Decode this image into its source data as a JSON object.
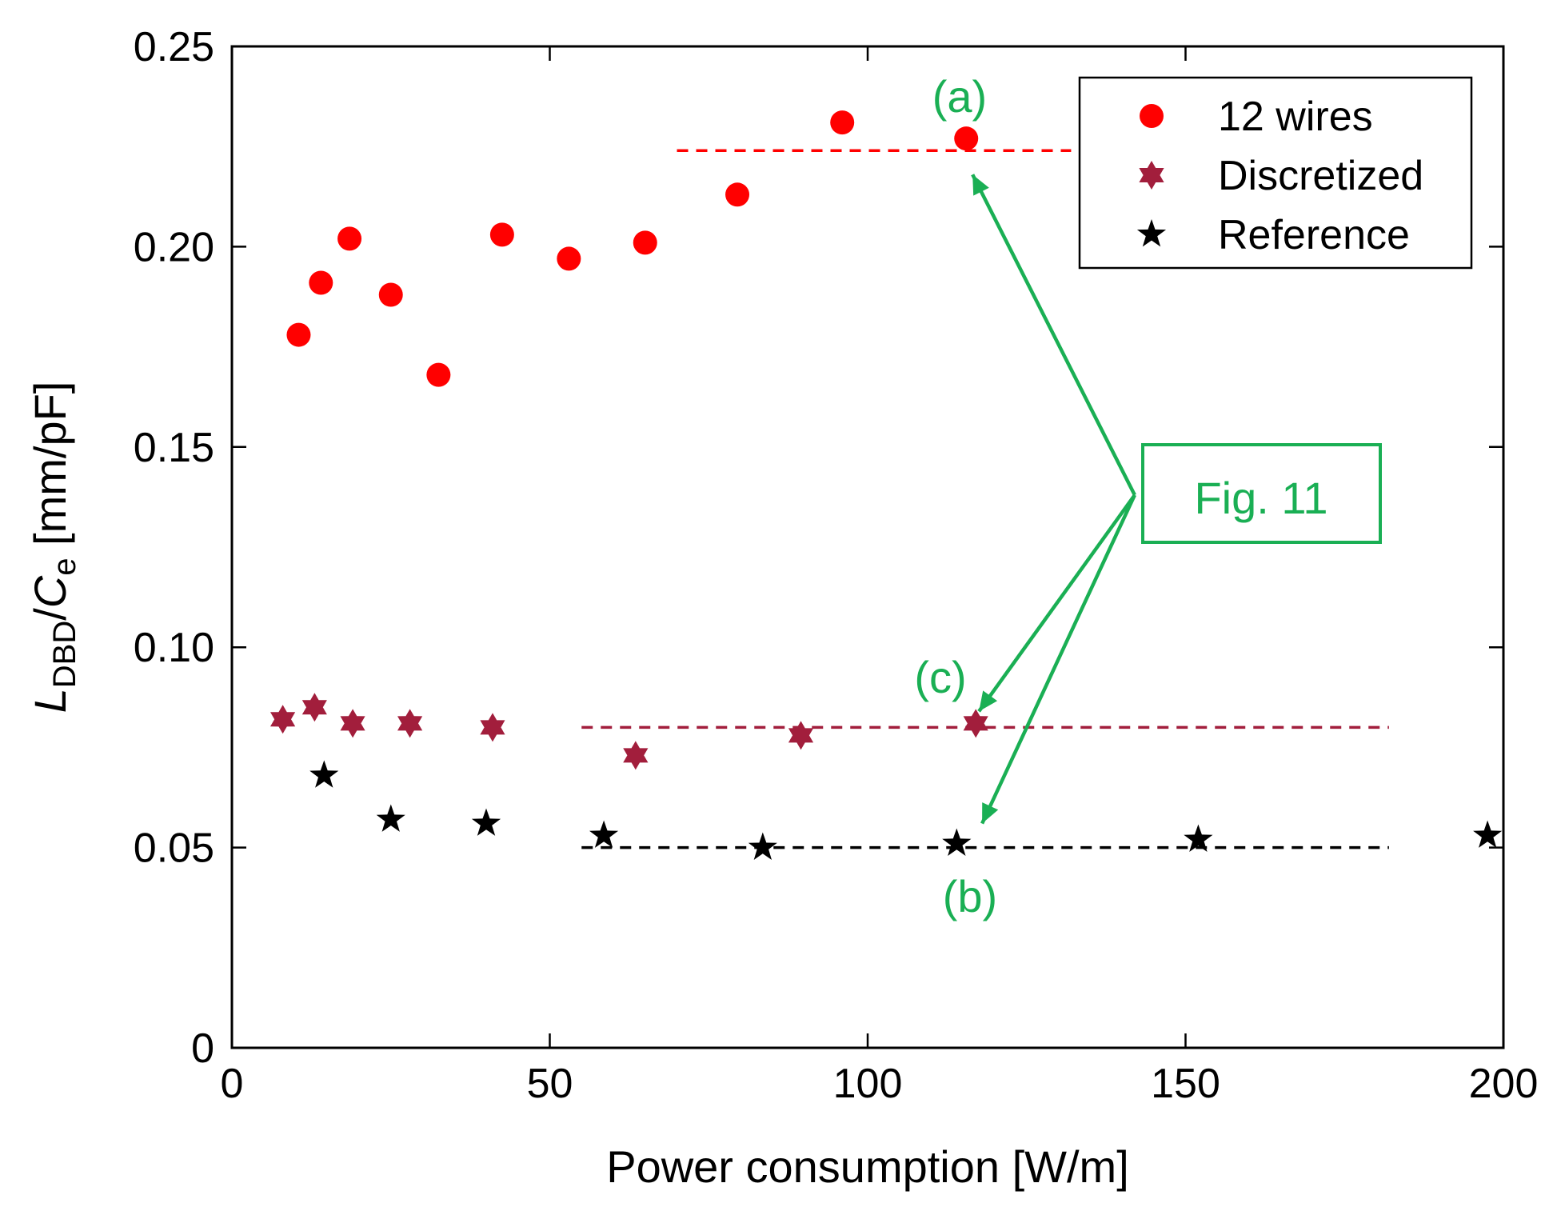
{
  "chart_data": {
    "type": "scatter",
    "xlabel": "Power consumption [W/m]",
    "ylabel": {
      "L": "L",
      "sub1": "DBD",
      "slash": "/",
      "C": "C",
      "sub2": "e",
      "unit": " [mm/pF]"
    },
    "xlim": [
      0,
      200
    ],
    "ylim": [
      0,
      0.25
    ],
    "x_ticks": [
      0,
      50,
      100,
      150,
      200
    ],
    "x_tick_labels": [
      "0",
      "50",
      "100",
      "150",
      "200"
    ],
    "y_ticks": [
      0,
      0.05,
      0.1,
      0.15,
      0.2,
      0.25
    ],
    "y_tick_labels": [
      "0",
      "0.05",
      "0.10",
      "0.15",
      "0.20",
      "0.25"
    ],
    "grid": false,
    "legend_position": "top-right",
    "series": [
      {
        "name": "12 wires",
        "marker": "circle",
        "color": "#ff0000",
        "points": [
          [
            10.5,
            0.178
          ],
          [
            14,
            0.191
          ],
          [
            18.5,
            0.202
          ],
          [
            25,
            0.188
          ],
          [
            32.5,
            0.168
          ],
          [
            42.5,
            0.203
          ],
          [
            53,
            0.197
          ],
          [
            65,
            0.201
          ],
          [
            79.5,
            0.213
          ],
          [
            96,
            0.231
          ],
          [
            115.5,
            0.227
          ]
        ]
      },
      {
        "name": "Discretized",
        "marker": "hexagram",
        "color": "#a21e3c",
        "points": [
          [
            8,
            0.082
          ],
          [
            13,
            0.085
          ],
          [
            19,
            0.081
          ],
          [
            28,
            0.081
          ],
          [
            41,
            0.08
          ],
          [
            63.5,
            0.073
          ],
          [
            89.5,
            0.078
          ],
          [
            117,
            0.081
          ]
        ]
      },
      {
        "name": "Reference",
        "marker": "star",
        "color": "#000000",
        "points": [
          [
            14.5,
            0.068
          ],
          [
            25,
            0.057
          ],
          [
            40,
            0.056
          ],
          [
            58.5,
            0.053
          ],
          [
            83.5,
            0.05
          ],
          [
            114,
            0.051
          ],
          [
            152,
            0.052
          ],
          [
            197.5,
            0.053
          ]
        ]
      }
    ],
    "reference_lines": [
      {
        "series": "12 wires",
        "y": 0.224,
        "x_start": 70,
        "x_end": 132,
        "color": "#ff0000",
        "style": "dashed"
      },
      {
        "series": "Discretized",
        "y": 0.08,
        "x_start": 55,
        "x_end": 182,
        "color": "#a21e3c",
        "style": "dashed"
      },
      {
        "series": "Reference",
        "y": 0.05,
        "x_start": 55,
        "x_end": 182,
        "color": "#000000",
        "style": "dashed"
      }
    ],
    "annotations": {
      "color": "#1aaf54",
      "box_label": "Fig. 11",
      "labels": {
        "a": "(a)",
        "b": "(b)",
        "c": "(c)"
      },
      "arrow_origin": [
        142,
        0.138
      ],
      "arrow_targets": {
        "a": [
          116.5,
          0.218
        ],
        "c": [
          117.5,
          0.084
        ],
        "b": [
          118,
          0.056
        ]
      }
    }
  }
}
